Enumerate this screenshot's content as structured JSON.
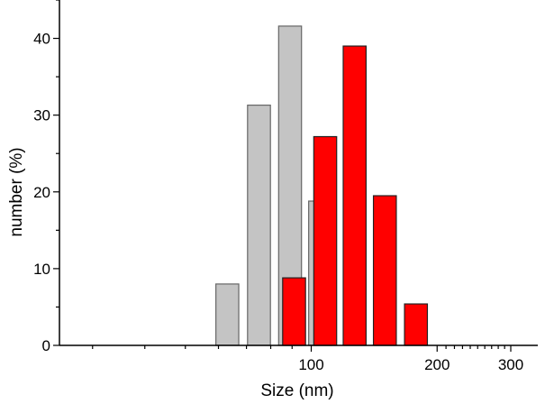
{
  "chart_data": {
    "type": "bar",
    "xlabel": "Size (nm)",
    "ylabel": "number (%)",
    "xscale": "log",
    "xlim": [
      25,
      300
    ],
    "ylim": [
      0,
      45
    ],
    "xticks": [
      100,
      200,
      300
    ],
    "yticks": [
      0,
      10,
      20,
      30,
      40
    ],
    "grid": false,
    "series": [
      {
        "color": "#c4c4c4",
        "x": [
          63,
          75,
          89,
          105
        ],
        "values": [
          8.0,
          31.3,
          41.6,
          18.8
        ]
      },
      {
        "color": "#ff0000",
        "x": [
          91,
          108,
          127,
          150,
          178
        ],
        "values": [
          8.8,
          27.2,
          39.0,
          19.5,
          5.4
        ]
      }
    ]
  }
}
